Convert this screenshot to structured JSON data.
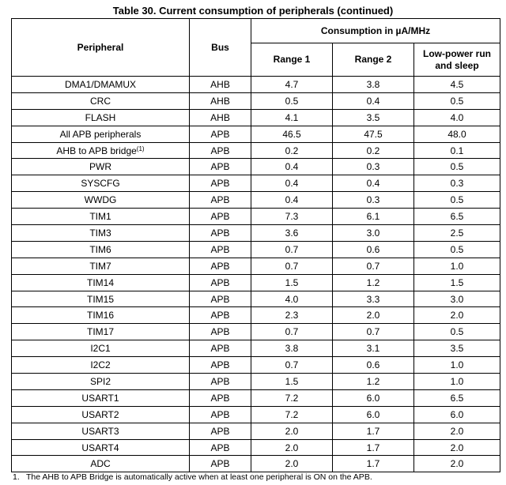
{
  "title": "Table 30. Current consumption of peripherals (continued)",
  "header": {
    "peripheral": "Peripheral",
    "bus": "Bus",
    "consumption": "Consumption in µA/MHz",
    "range1": "Range 1",
    "range2": "Range 2",
    "low_power_line1": "Low-power run",
    "low_power_line2": "and sleep"
  },
  "rows": [
    {
      "peripheral": "DMA1/DMAMUX",
      "sup": "",
      "bus": "AHB",
      "range1": "4.7",
      "range2": "3.8",
      "low_power": "4.5"
    },
    {
      "peripheral": "CRC",
      "sup": "",
      "bus": "AHB",
      "range1": "0.5",
      "range2": "0.4",
      "low_power": "0.5"
    },
    {
      "peripheral": "FLASH",
      "sup": "",
      "bus": "AHB",
      "range1": "4.1",
      "range2": "3.5",
      "low_power": "4.0"
    },
    {
      "peripheral": "All APB peripherals",
      "sup": "",
      "bus": "APB",
      "range1": "46.5",
      "range2": "47.5",
      "low_power": "48.0"
    },
    {
      "peripheral": "AHB to APB bridge",
      "sup": "(1)",
      "bus": "APB",
      "range1": "0.2",
      "range2": "0.2",
      "low_power": "0.1"
    },
    {
      "peripheral": "PWR",
      "sup": "",
      "bus": "APB",
      "range1": "0.4",
      "range2": "0.3",
      "low_power": "0.5"
    },
    {
      "peripheral": "SYSCFG",
      "sup": "",
      "bus": "APB",
      "range1": "0.4",
      "range2": "0.4",
      "low_power": "0.3"
    },
    {
      "peripheral": "WWDG",
      "sup": "",
      "bus": "APB",
      "range1": "0.4",
      "range2": "0.3",
      "low_power": "0.5"
    },
    {
      "peripheral": "TIM1",
      "sup": "",
      "bus": "APB",
      "range1": "7.3",
      "range2": "6.1",
      "low_power": "6.5"
    },
    {
      "peripheral": "TIM3",
      "sup": "",
      "bus": "APB",
      "range1": "3.6",
      "range2": "3.0",
      "low_power": "2.5"
    },
    {
      "peripheral": "TIM6",
      "sup": "",
      "bus": "APB",
      "range1": "0.7",
      "range2": "0.6",
      "low_power": "0.5"
    },
    {
      "peripheral": "TIM7",
      "sup": "",
      "bus": "APB",
      "range1": "0.7",
      "range2": "0.7",
      "low_power": "1.0"
    },
    {
      "peripheral": "TIM14",
      "sup": "",
      "bus": "APB",
      "range1": "1.5",
      "range2": "1.2",
      "low_power": "1.5"
    },
    {
      "peripheral": "TIM15",
      "sup": "",
      "bus": "APB",
      "range1": "4.0",
      "range2": "3.3",
      "low_power": "3.0"
    },
    {
      "peripheral": "TIM16",
      "sup": "",
      "bus": "APB",
      "range1": "2.3",
      "range2": "2.0",
      "low_power": "2.0"
    },
    {
      "peripheral": "TIM17",
      "sup": "",
      "bus": "APB",
      "range1": "0.7",
      "range2": "0.7",
      "low_power": "0.5"
    },
    {
      "peripheral": "I2C1",
      "sup": "",
      "bus": "APB",
      "range1": "3.8",
      "range2": "3.1",
      "low_power": "3.5"
    },
    {
      "peripheral": "I2C2",
      "sup": "",
      "bus": "APB",
      "range1": "0.7",
      "range2": "0.6",
      "low_power": "1.0"
    },
    {
      "peripheral": "SPI2",
      "sup": "",
      "bus": "APB",
      "range1": "1.5",
      "range2": "1.2",
      "low_power": "1.0"
    },
    {
      "peripheral": "USART1",
      "sup": "",
      "bus": "APB",
      "range1": "7.2",
      "range2": "6.0",
      "low_power": "6.5"
    },
    {
      "peripheral": "USART2",
      "sup": "",
      "bus": "APB",
      "range1": "7.2",
      "range2": "6.0",
      "low_power": "6.0"
    },
    {
      "peripheral": "USART3",
      "sup": "",
      "bus": "APB",
      "range1": "2.0",
      "range2": "1.7",
      "low_power": "2.0"
    },
    {
      "peripheral": "USART4",
      "sup": "",
      "bus": "APB",
      "range1": "2.0",
      "range2": "1.7",
      "low_power": "2.0"
    },
    {
      "peripheral": "ADC",
      "sup": "",
      "bus": "APB",
      "range1": "2.0",
      "range2": "1.7",
      "low_power": "2.0"
    }
  ],
  "footnote": {
    "number": "1.",
    "text": "The AHB to APB Bridge is automatically active when at least one peripheral is ON on the APB."
  }
}
